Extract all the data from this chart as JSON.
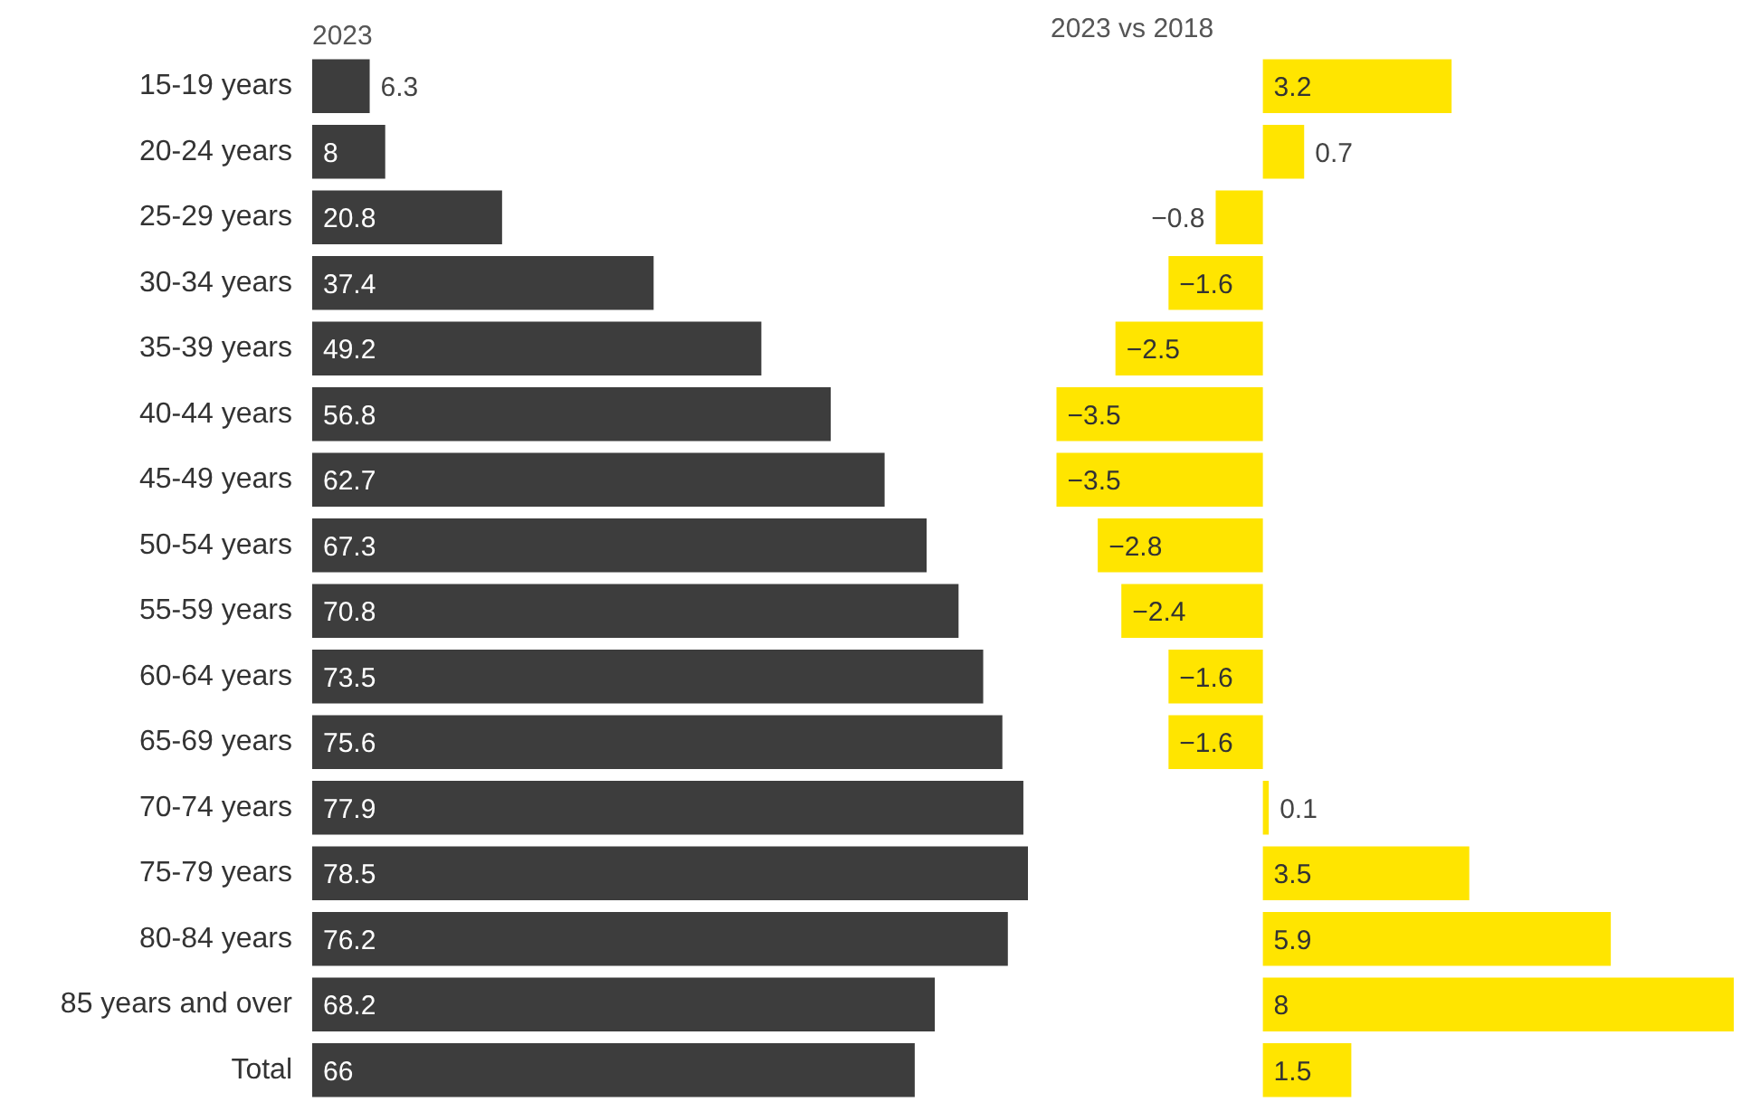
{
  "chart_data": [
    {
      "type": "bar",
      "orientation": "horizontal",
      "title": "2023",
      "categories": [
        "15-19 years",
        "20-24 years",
        "25-29 years",
        "30-34 years",
        "35-39 years",
        "40-44 years",
        "45-49 years",
        "50-54 years",
        "55-59 years",
        "60-64 years",
        "65-69 years",
        "70-74 years",
        "75-79 years",
        "80-84 years",
        "85 years and over",
        "Total"
      ],
      "values": [
        6.3,
        8,
        20.8,
        37.4,
        49.2,
        56.8,
        62.7,
        67.3,
        70.8,
        73.5,
        75.6,
        77.9,
        78.5,
        76.2,
        68.2,
        66
      ],
      "color": "#3d3d3d",
      "xlim": [
        0,
        78.5
      ],
      "data_labels": true,
      "tick_labels": "y"
    },
    {
      "type": "bar",
      "orientation": "horizontal",
      "title": "2023 vs 2018",
      "values": [
        3.2,
        0.7,
        -0.8,
        -1.6,
        -2.5,
        -3.5,
        -3.5,
        -2.8,
        -2.4,
        -1.6,
        -1.6,
        0.1,
        3.5,
        5.9,
        8,
        1.5
      ],
      "color": "#ffe500",
      "xlim": [
        -3.6,
        8
      ],
      "data_labels": true,
      "tick_labels": false
    }
  ]
}
